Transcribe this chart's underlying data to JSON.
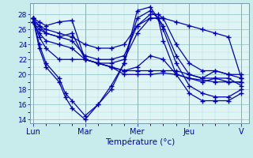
{
  "xlabel": "Température (°c)",
  "bg_color": "#c8ecec",
  "plot_bg_color": "#dff4f4",
  "line_color": "#0000bb",
  "ylim": [
    13.5,
    29.5
  ],
  "yticks": [
    14,
    16,
    18,
    20,
    22,
    24,
    26,
    28
  ],
  "day_labels": [
    "Lun",
    "Mar",
    "Mer",
    "Jeu",
    "V"
  ],
  "day_positions": [
    0,
    1,
    2,
    3,
    4
  ],
  "series": [
    {
      "x": [
        0,
        0.12,
        0.25,
        0.5,
        0.75,
        1.0,
        1.25,
        1.5,
        1.75,
        2.0,
        2.25,
        2.5,
        2.75,
        3.0,
        3.25,
        3.5,
        3.75,
        4.0
      ],
      "y": [
        27.5,
        27.0,
        26.5,
        27.0,
        27.2,
        22.0,
        21.5,
        21.0,
        20.5,
        20.5,
        20.5,
        20.5,
        20.5,
        20.0,
        19.5,
        20.5,
        20.0,
        19.5
      ]
    },
    {
      "x": [
        0,
        0.12,
        0.25,
        0.5,
        0.75,
        1.0,
        1.25,
        1.5,
        1.75,
        2.0,
        2.25,
        2.5,
        2.75,
        3.0,
        3.25,
        3.5,
        3.75,
        4.0
      ],
      "y": [
        27.5,
        26.5,
        25.5,
        25.0,
        25.5,
        22.0,
        21.5,
        21.0,
        20.0,
        20.0,
        20.0,
        20.2,
        20.0,
        19.5,
        19.0,
        19.5,
        19.5,
        18.5
      ]
    },
    {
      "x": [
        0,
        0.12,
        0.25,
        0.5,
        0.75,
        1.0,
        1.25,
        1.5,
        1.75,
        2.0,
        2.25,
        2.5,
        2.75,
        3.0,
        3.5,
        3.75,
        4.0
      ],
      "y": [
        27.5,
        25.0,
        23.5,
        22.0,
        22.0,
        22.0,
        21.5,
        21.0,
        20.5,
        21.0,
        22.5,
        22.0,
        20.0,
        19.5,
        19.0,
        19.0,
        19.0
      ]
    },
    {
      "x": [
        0,
        0.12,
        0.25,
        0.5,
        0.62,
        0.75,
        1.0,
        1.25,
        1.5,
        1.75,
        2.0,
        2.25,
        2.4,
        2.5,
        2.75,
        3.0,
        3.25,
        3.5,
        3.75,
        4.0
      ],
      "y": [
        27.5,
        24.0,
        21.5,
        19.5,
        17.5,
        16.5,
        14.5,
        16.0,
        18.5,
        21.5,
        27.5,
        28.5,
        27.5,
        26.0,
        21.5,
        18.5,
        17.5,
        17.0,
        17.0,
        18.0
      ]
    },
    {
      "x": [
        0,
        0.12,
        0.25,
        0.5,
        0.62,
        0.75,
        1.0,
        1.25,
        1.5,
        1.75,
        2.0,
        2.25,
        2.4,
        2.5,
        2.75,
        3.0,
        3.25,
        3.5,
        3.75,
        4.0
      ],
      "y": [
        27.5,
        23.5,
        21.0,
        19.0,
        17.0,
        15.5,
        14.0,
        16.0,
        18.0,
        21.5,
        28.5,
        29.0,
        27.5,
        24.5,
        20.0,
        17.5,
        16.5,
        16.5,
        16.5,
        17.5
      ]
    },
    {
      "x": [
        0,
        0.12,
        0.25,
        0.5,
        0.75,
        1.0,
        1.25,
        1.5,
        1.75,
        2.0,
        2.25,
        2.4,
        2.5,
        2.75,
        3.0,
        3.25,
        3.5,
        3.75,
        4.0
      ],
      "y": [
        27.0,
        25.5,
        24.5,
        24.0,
        23.5,
        22.0,
        21.5,
        21.5,
        22.0,
        25.5,
        27.5,
        27.5,
        26.5,
        22.5,
        20.0,
        19.5,
        19.5,
        19.0,
        19.0
      ]
    },
    {
      "x": [
        0,
        0.12,
        0.25,
        0.5,
        0.75,
        1.0,
        1.25,
        1.5,
        1.75,
        2.0,
        2.25,
        2.4,
        2.5,
        2.75,
        3.0,
        3.25,
        3.5,
        3.75,
        4.0
      ],
      "y": [
        27.0,
        26.0,
        25.5,
        25.0,
        24.5,
        22.5,
        22.0,
        22.0,
        22.5,
        26.5,
        28.0,
        28.0,
        27.5,
        24.0,
        21.5,
        20.5,
        20.5,
        20.0,
        20.0
      ]
    },
    {
      "x": [
        0,
        0.12,
        0.25,
        0.5,
        0.75,
        1.0,
        1.25,
        1.5,
        1.75,
        2.0,
        2.25,
        2.5,
        2.75,
        3.0,
        3.25,
        3.5,
        3.75,
        4.0
      ],
      "y": [
        27.0,
        26.5,
        26.0,
        25.5,
        25.0,
        24.0,
        23.5,
        23.5,
        24.0,
        26.5,
        27.5,
        27.5,
        27.0,
        26.5,
        26.0,
        25.5,
        25.0,
        19.5
      ]
    }
  ]
}
